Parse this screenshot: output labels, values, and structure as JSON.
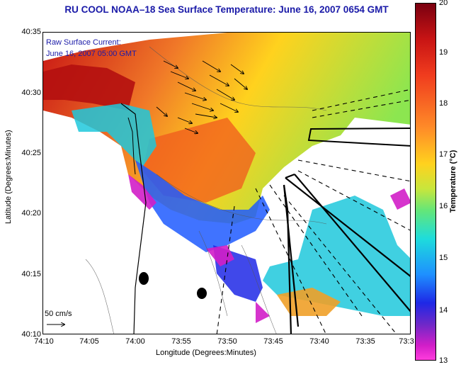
{
  "title": "RU COOL  NOAA–18  Sea Surface Temperature:  June 16, 2007 0654 GMT",
  "current_label_line1": "Raw Surface Current:",
  "current_label_line2": "June 16, 2007 05:00 GMT",
  "scale_label": "50 cm/s",
  "x_axis_label": "Longitude (Degrees:Minutes)",
  "y_axis_label": "Latitude (Degrees:Minutes)",
  "colorbar_label": "Temperature (°C)",
  "x_ticks": [
    "74:10",
    "74:05",
    "74:00",
    "73:55",
    "73:50",
    "73:45",
    "73:40",
    "73:35",
    "73:3"
  ],
  "y_ticks": [
    "40:35",
    "40:30",
    "40:25",
    "40:20",
    "40:15",
    "40:10"
  ],
  "colorbar_ticks": [
    "20",
    "19",
    "18",
    "17",
    "16",
    "15",
    "14",
    "13"
  ],
  "colorbar_range": [
    13,
    20
  ],
  "colors": {
    "title": "#1a1aa8",
    "land": "#ffffff",
    "warm": "#e8501e",
    "cold": "#d21ec8"
  }
}
